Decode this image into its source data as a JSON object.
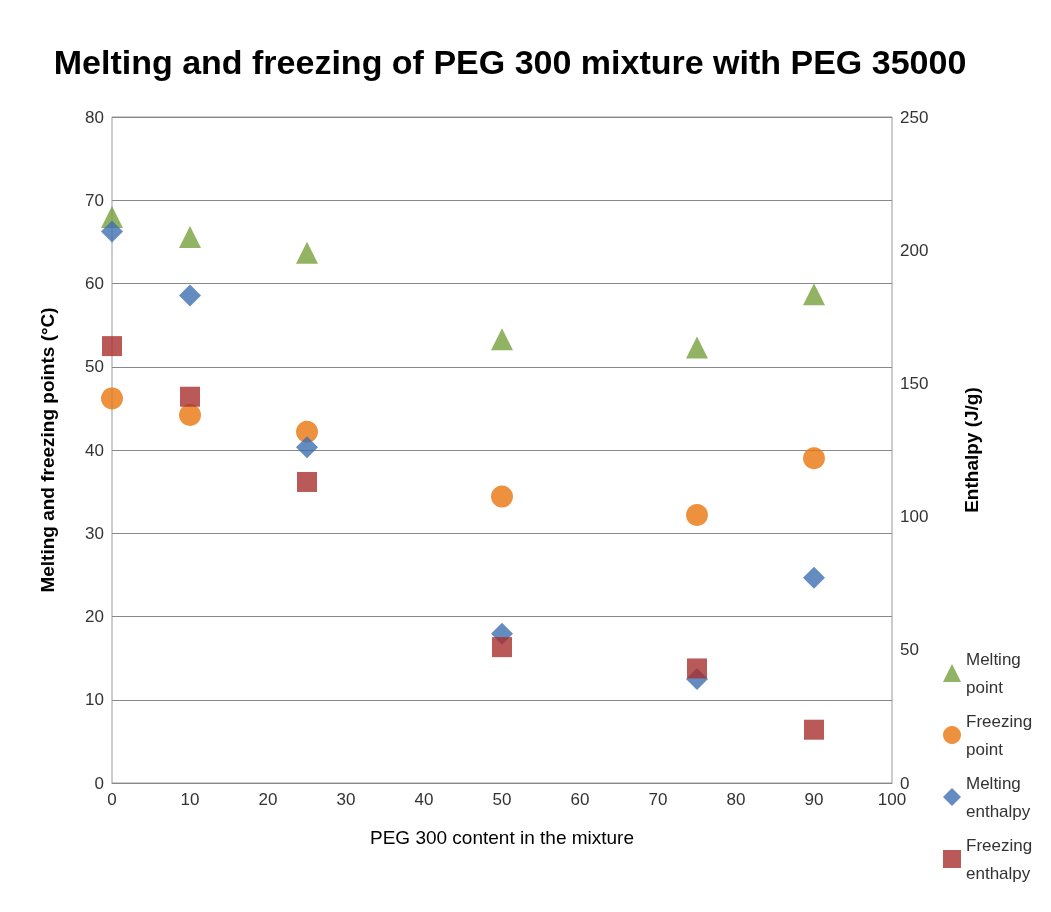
{
  "chart_data": {
    "type": "scatter",
    "title": "Melting and freezing of PEG 300 mixture with PEG 35000",
    "xlabel": "PEG 300 content in the mixture",
    "ylabel": "Melting and freezing points (°C)",
    "y2label": "Enthalpy (J/g)",
    "x": [
      0,
      10,
      25,
      50,
      75,
      90
    ],
    "series": [
      {
        "name": "Melting point",
        "color": "#77a03c",
        "marker": "triangle",
        "values": [
          68.0,
          65.6,
          63.7,
          53.3,
          52.3,
          58.7
        ]
      },
      {
        "name": "Freezing point",
        "color": "#e8750e",
        "marker": "circle",
        "values": [
          46.2,
          44.2,
          42.2,
          34.4,
          32.2,
          39.0
        ]
      },
      {
        "name": "Melting enthalpy",
        "color": "#3d6fb0",
        "marker": "diamond",
        "axis": "y2",
        "values": [
          207,
          183,
          126,
          56,
          39,
          77
        ]
      },
      {
        "name": "Freezing enthalpy",
        "color": "#a8302e",
        "marker": "square",
        "axis": "y2",
        "values": [
          164,
          145,
          113,
          51,
          43,
          20
        ]
      }
    ],
    "xlim": [
      0,
      100
    ],
    "xticks": [
      0,
      10,
      20,
      30,
      40,
      50,
      60,
      70,
      80,
      90,
      100
    ],
    "ylim": [
      0,
      80
    ],
    "yticks": [
      0,
      10,
      20,
      30,
      40,
      50,
      60,
      70,
      80
    ],
    "y2lim": [
      0,
      250
    ],
    "y2ticks": [
      0,
      50,
      100,
      150,
      200,
      250
    ],
    "grid": "y",
    "legend": "right"
  }
}
